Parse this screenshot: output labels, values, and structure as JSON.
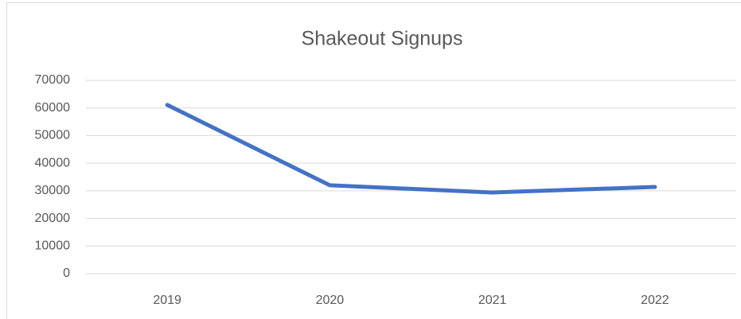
{
  "chart_data": {
    "type": "line",
    "title": "Shakeout Signups",
    "categories": [
      "2019",
      "2020",
      "2021",
      "2022"
    ],
    "series": [
      {
        "name": "Shakeout Signups",
        "color": "#4472c4",
        "values": [
          61100,
          32000,
          29400,
          31400
        ]
      }
    ],
    "ylim": [
      0,
      70000
    ],
    "yticks": [
      0,
      10000,
      20000,
      30000,
      40000,
      50000,
      60000,
      70000
    ],
    "grid": true
  }
}
